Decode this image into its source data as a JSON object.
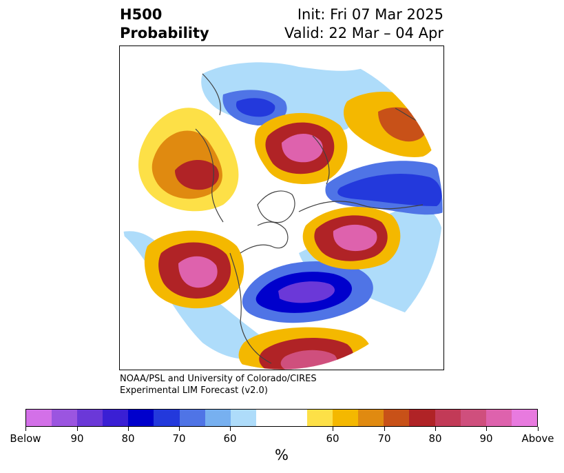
{
  "title": {
    "line1": "H500",
    "line2": "Probability",
    "init": "Init: Fri 07 Mar 2025",
    "valid": "Valid: 22 Mar – 04 Apr"
  },
  "credit": {
    "line1": "NOAA/PSL and University of Colorado/CIRES",
    "line2": "Experimental LIM Forecast (v2.0)"
  },
  "colorbar": {
    "colors": [
      "#d370e8",
      "#9b55e0",
      "#6b38d8",
      "#3a1fd4",
      "#0000cc",
      "#2339dc",
      "#4f74e6",
      "#77b0f0",
      "#aedcfa",
      "#ffffff",
      "#ffffff",
      "#fde047",
      "#f4b800",
      "#e08a10",
      "#c85118",
      "#b02326",
      "#c23a57",
      "#cf4f7d",
      "#de62ad",
      "#e87adf"
    ],
    "labels": [
      "Below",
      "90",
      "80",
      "70",
      "60",
      "60",
      "70",
      "80",
      "90",
      "Above"
    ],
    "unit": "%"
  },
  "map": {
    "projection": "north-polar-stereographic",
    "below_color": "#2339dc",
    "above_color": "#b02326"
  }
}
